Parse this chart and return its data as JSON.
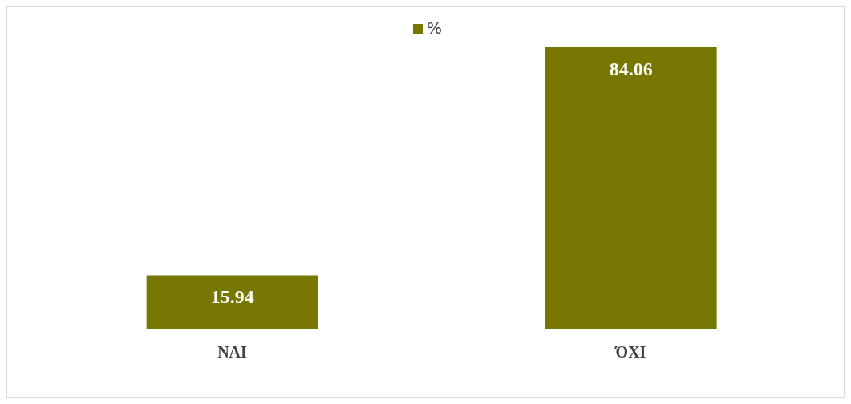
{
  "chart_data": {
    "type": "bar",
    "categories": [
      "NAI",
      "ΌΧΙ"
    ],
    "series": [
      {
        "name": "%",
        "color": "#767600",
        "values": [
          15.94,
          84.06
        ]
      }
    ],
    "data_labels": true,
    "legend": "top",
    "grid": false
  }
}
